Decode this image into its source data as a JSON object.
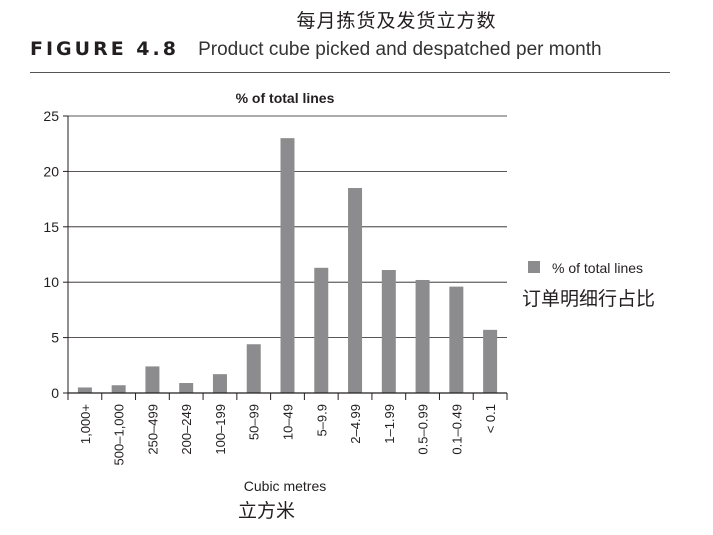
{
  "header": {
    "chinese_title": "每月拣货及发货立方数",
    "figure_label": "FIGURE 4.8",
    "figure_caption": "Product cube picked and despatched per month"
  },
  "colors": {
    "bar": "#8c8c8e",
    "axis": "#231f20",
    "grid": "#231f20"
  },
  "chart_data": {
    "type": "bar",
    "title": "% of total lines",
    "xlabel": "Cubic metres",
    "xlabel_cn": "立方米",
    "ylabel": "",
    "ylim": [
      0,
      25
    ],
    "yticks": [
      0,
      5,
      10,
      15,
      20,
      25
    ],
    "grid": true,
    "legend_position": "right",
    "categories": [
      "1,000+",
      "500–1,000",
      "250–499",
      "200–249",
      "100–199",
      "50–99",
      "10–49",
      "5–9.9",
      "2–4.99",
      "1–1.99",
      "0.5–0.99",
      "0.1–0.49",
      "< 0.1"
    ],
    "series": [
      {
        "name": "% of total lines",
        "name_cn": "订单明细行占比",
        "values": [
          0.5,
          0.7,
          2.4,
          0.9,
          1.7,
          4.4,
          23.0,
          11.3,
          18.5,
          11.1,
          10.2,
          9.6,
          5.7
        ]
      }
    ]
  }
}
